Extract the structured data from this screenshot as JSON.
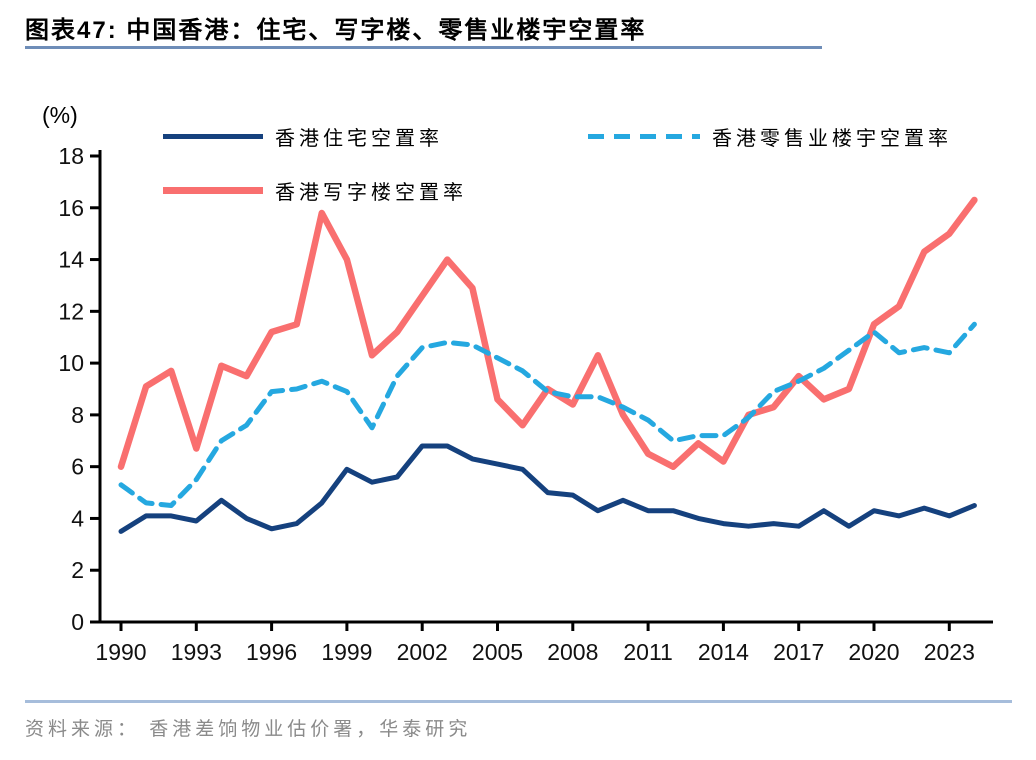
{
  "page": {
    "title": "图表47:  中国香港：住宅、写字楼、零售业楼宇空置率",
    "source_note": "资料来源： 香港差饷物业估价署，华泰研究"
  },
  "chart_data": {
    "type": "line",
    "title": "中国香港：住宅、写字楼、零售业楼宇空置率",
    "unit_label": "(%)",
    "ylabel": "(%)",
    "ylim": [
      0,
      18
    ],
    "y_ticks": [
      0,
      2,
      4,
      6,
      8,
      10,
      12,
      14,
      16,
      18
    ],
    "x_tick_labels": [
      "1990",
      "1993",
      "1996",
      "1999",
      "2002",
      "2005",
      "2008",
      "2011",
      "2014",
      "2017",
      "2020",
      "2023"
    ],
    "grid": false,
    "legend_position": "top",
    "years": [
      1990,
      1991,
      1992,
      1993,
      1994,
      1995,
      1996,
      1997,
      1998,
      1999,
      2000,
      2001,
      2002,
      2003,
      2004,
      2005,
      2006,
      2007,
      2008,
      2009,
      2010,
      2011,
      2012,
      2013,
      2014,
      2015,
      2016,
      2017,
      2018,
      2019,
      2020,
      2021,
      2022,
      2023,
      2024
    ],
    "series": [
      {
        "name": "香港住宅空置率",
        "color": "#15417E",
        "style": "solid",
        "values": [
          3.5,
          4.1,
          4.1,
          3.9,
          4.7,
          4.0,
          3.6,
          3.8,
          4.6,
          5.9,
          5.4,
          5.6,
          6.8,
          6.8,
          6.3,
          6.1,
          5.9,
          5.0,
          4.9,
          4.3,
          4.7,
          4.3,
          4.3,
          4.0,
          3.8,
          3.7,
          3.8,
          3.7,
          4.3,
          3.7,
          4.3,
          4.1,
          4.4,
          4.1,
          4.5
        ]
      },
      {
        "name": "香港写字楼空置率",
        "color": "#F96F6F",
        "style": "solid",
        "values": [
          6.0,
          9.1,
          9.7,
          6.7,
          9.9,
          9.5,
          11.2,
          11.5,
          15.8,
          14.0,
          10.3,
          11.2,
          12.6,
          14.0,
          12.9,
          8.6,
          7.6,
          9.0,
          8.4,
          10.3,
          8.0,
          6.5,
          6.0,
          6.9,
          6.2,
          8.0,
          8.3,
          9.5,
          8.6,
          9.0,
          11.5,
          12.2,
          14.3,
          15.0,
          16.3
        ]
      },
      {
        "name": "香港零售业楼宇空置率",
        "color": "#25A8E0",
        "style": "dashed",
        "values": [
          5.3,
          4.6,
          4.5,
          5.5,
          7.0,
          7.6,
          8.9,
          9.0,
          9.3,
          8.9,
          7.5,
          9.5,
          10.6,
          10.8,
          10.7,
          10.2,
          9.7,
          8.9,
          8.7,
          8.7,
          8.3,
          7.8,
          7.0,
          7.2,
          7.2,
          7.9,
          8.9,
          9.3,
          9.8,
          10.5,
          11.2,
          10.4,
          10.6,
          10.4,
          11.5
        ]
      }
    ]
  }
}
